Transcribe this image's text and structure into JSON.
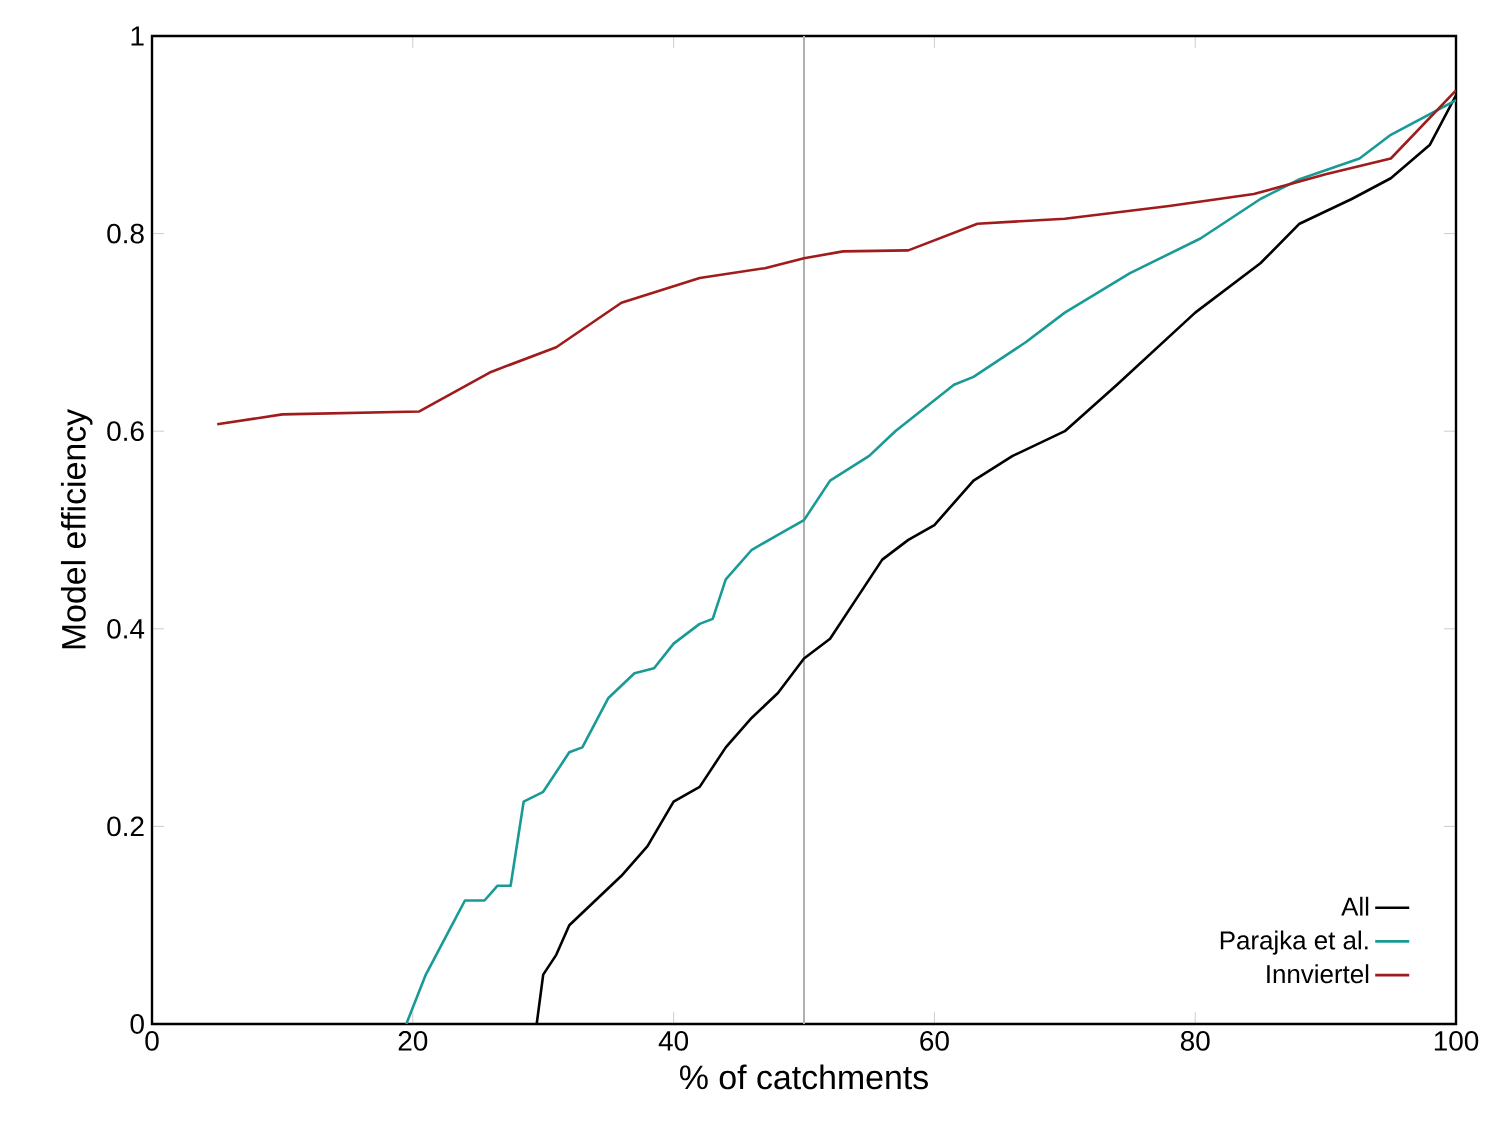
{
  "chart_data": {
    "type": "line",
    "xlabel": "% of catchments",
    "ylabel": "Model efficiency",
    "xlim": [
      0,
      100
    ],
    "ylim": [
      0,
      1
    ],
    "xticks": [
      0,
      20,
      40,
      60,
      80,
      100
    ],
    "yticks": [
      0,
      0.2,
      0.4,
      0.6,
      0.8,
      1
    ],
    "grid": false,
    "legend": "bottom right",
    "line_style": "solid",
    "marker": "none",
    "ref_lines": [
      {
        "axis": "x",
        "value": 50,
        "color": "#b0b0b0"
      }
    ],
    "series": [
      {
        "name": "All",
        "color": "#000000",
        "x": [
          29.5,
          30,
          31,
          32,
          34,
          36,
          38,
          40,
          42,
          44,
          46,
          48,
          50,
          52,
          54,
          56,
          58,
          60,
          63,
          66,
          70,
          74,
          80,
          85,
          88,
          92,
          95,
          98,
          100
        ],
        "values": [
          0,
          0.05,
          0.07,
          0.1,
          0.125,
          0.15,
          0.18,
          0.225,
          0.24,
          0.28,
          0.31,
          0.335,
          0.37,
          0.39,
          0.43,
          0.47,
          0.49,
          0.505,
          0.55,
          0.575,
          0.6,
          0.647,
          0.72,
          0.77,
          0.81,
          0.835,
          0.856,
          0.89,
          0.94
        ]
      },
      {
        "name": "Parajka et al.",
        "color": "#1a9a96",
        "x": [
          19.5,
          21,
          23,
          24,
          25.5,
          26.5,
          27.5,
          28.5,
          30,
          32,
          33,
          35,
          37,
          38.5,
          40,
          42,
          43,
          44,
          46,
          48,
          50,
          52,
          55,
          57,
          61.5,
          63,
          67,
          70,
          75,
          80.4,
          85,
          88,
          92.6,
          95,
          100
        ],
        "values": [
          0,
          0.05,
          0.1,
          0.125,
          0.125,
          0.14,
          0.14,
          0.225,
          0.235,
          0.275,
          0.28,
          0.33,
          0.355,
          0.36,
          0.385,
          0.405,
          0.41,
          0.45,
          0.48,
          0.495,
          0.51,
          0.55,
          0.575,
          0.6,
          0.647,
          0.655,
          0.69,
          0.72,
          0.76,
          0.795,
          0.835,
          0.855,
          0.876,
          0.9,
          0.935
        ]
      },
      {
        "name": "Innviertel",
        "color": "#a01c1c",
        "x": [
          5,
          10,
          20.5,
          26,
          31,
          36,
          42,
          47,
          50,
          53,
          58,
          63.3,
          70,
          78,
          84.5,
          90,
          95,
          100
        ],
        "values": [
          0.607,
          0.617,
          0.62,
          0.66,
          0.685,
          0.73,
          0.755,
          0.765,
          0.775,
          0.782,
          0.783,
          0.81,
          0.815,
          0.828,
          0.84,
          0.86,
          0.876,
          0.945
        ]
      }
    ]
  }
}
